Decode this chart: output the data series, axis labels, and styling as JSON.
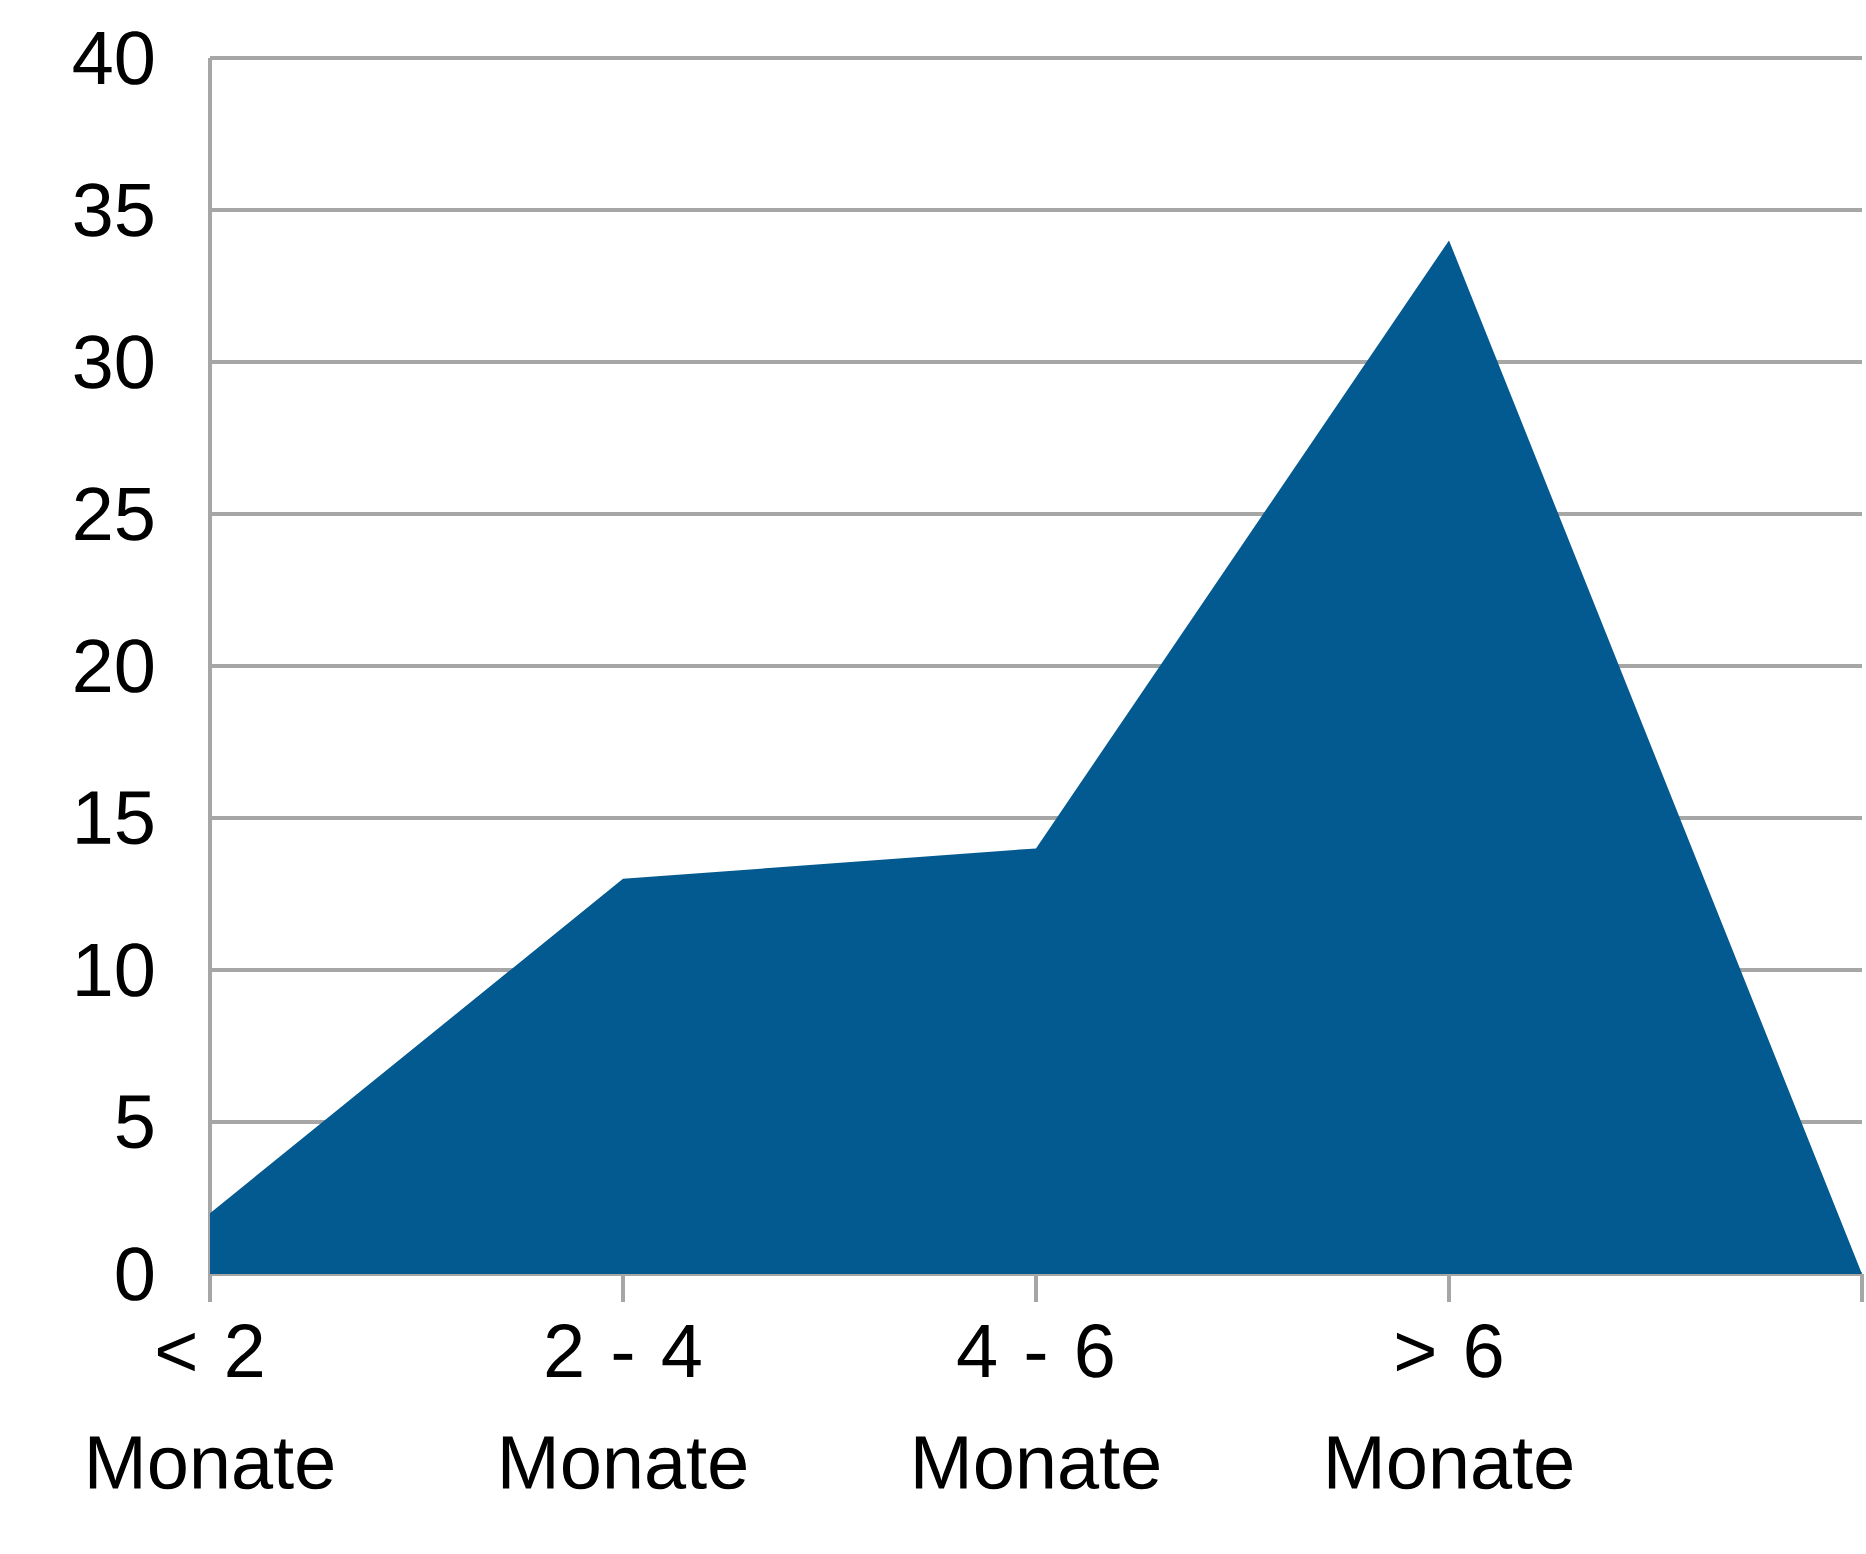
{
  "chart_data": {
    "type": "area",
    "categories": [
      "< 2 Monate",
      "2 - 4 Monate",
      "4 - 6 Monate",
      "> 6 Monate",
      null
    ],
    "values": [
      2,
      13,
      14,
      34,
      0
    ],
    "color": "#035a91",
    "ylim": [
      0,
      40
    ],
    "yticks": [
      0,
      5,
      10,
      15,
      20,
      25,
      30,
      35,
      40
    ],
    "grid": "y"
  }
}
